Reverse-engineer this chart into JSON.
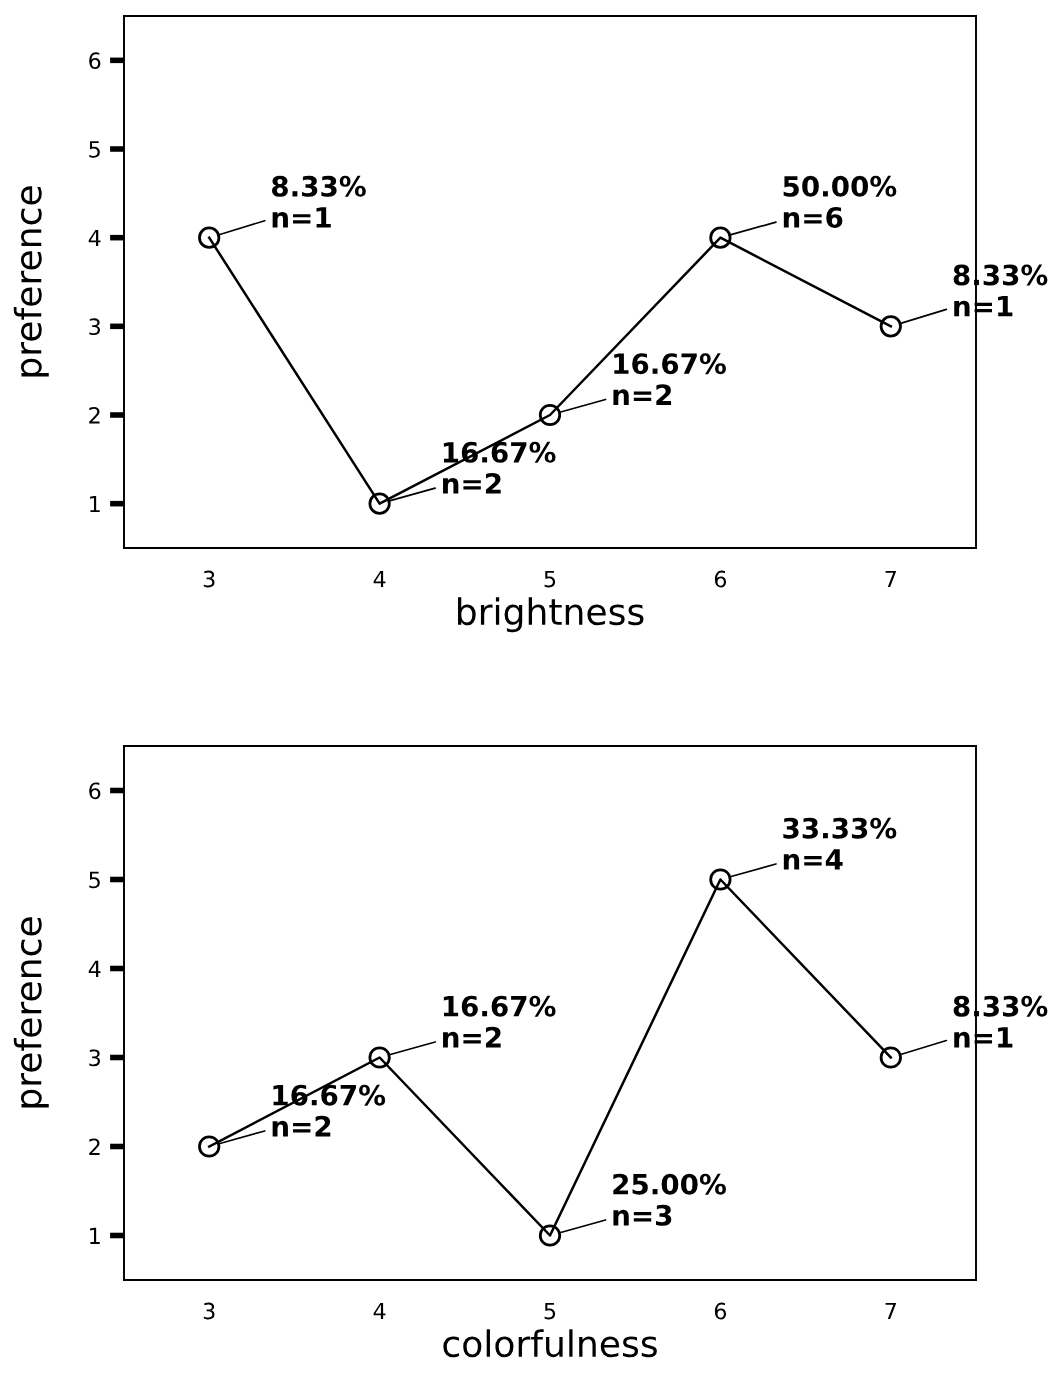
{
  "chart_data": [
    {
      "type": "line",
      "x": [
        3,
        4,
        5,
        6,
        7
      ],
      "values": [
        4,
        1,
        2,
        4,
        3
      ],
      "color": "#000000",
      "marker": "circle",
      "line_style": "solid",
      "xlabel": "brightness",
      "ylabel": "preference",
      "xlim": [
        2.5,
        7.5
      ],
      "ylim": [
        0.5,
        6.5
      ],
      "xticks": [
        3,
        4,
        5,
        6,
        7
      ],
      "yticks": [
        1,
        2,
        3,
        4,
        5,
        6
      ],
      "grid": false,
      "annotations": [
        {
          "text": "8.33%\nn=1",
          "x": 3,
          "y": 4
        },
        {
          "text": "16.67%\nn=2",
          "x": 4,
          "y": 1
        },
        {
          "text": "16.67%\nn=2",
          "x": 5,
          "y": 2
        },
        {
          "text": "50.00%\nn=6",
          "x": 6,
          "y": 4
        },
        {
          "text": "8.33%\nn=1",
          "x": 7,
          "y": 3
        }
      ]
    },
    {
      "type": "line",
      "x": [
        3,
        4,
        5,
        6,
        7
      ],
      "values": [
        2,
        3,
        1,
        5,
        3
      ],
      "color": "#000000",
      "marker": "circle",
      "line_style": "solid",
      "xlabel": "colorfulness",
      "ylabel": "preference",
      "xlim": [
        2.5,
        7.5
      ],
      "ylim": [
        0.5,
        6.5
      ],
      "xticks": [
        3,
        4,
        5,
        6,
        7
      ],
      "yticks": [
        1,
        2,
        3,
        4,
        5,
        6
      ],
      "grid": false,
      "annotations": [
        {
          "text": "16.67%\nn=2",
          "x": 3,
          "y": 2
        },
        {
          "text": "16.67%\nn=2",
          "x": 4,
          "y": 3
        },
        {
          "text": "25.00%\nn=3",
          "x": 5,
          "y": 1
        },
        {
          "text": "33.33%\nn=4",
          "x": 6,
          "y": 5
        },
        {
          "text": "8.33%\nn=1",
          "x": 7,
          "y": 3
        }
      ]
    }
  ]
}
